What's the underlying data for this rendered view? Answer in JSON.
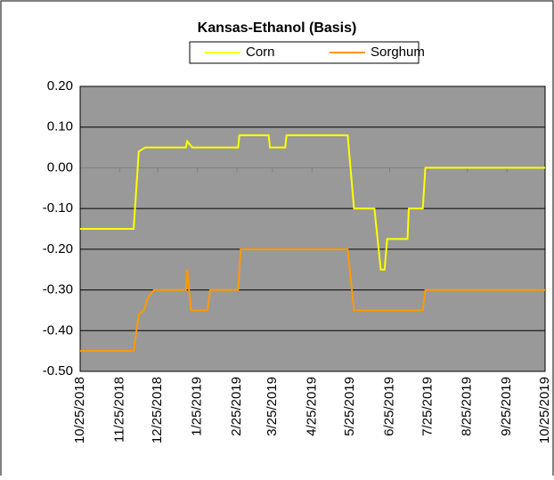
{
  "chart_data": {
    "type": "line",
    "title": "Kansas-Ethanol (Basis)",
    "series": [
      {
        "name": "Corn",
        "color": "#ffff00",
        "x": [
          "10/25/2018",
          "12/6/2018",
          "12/10/2018",
          "12/15/2018",
          "1/16/2019",
          "1/17/2019",
          "1/21/2019",
          "2/26/2019",
          "2/27/2019",
          "3/22/2019",
          "3/23/2019",
          "4/4/2019",
          "4/5/2019",
          "5/23/2019",
          "5/28/2019",
          "6/13/2019",
          "6/18/2019",
          "6/21/2019",
          "6/23/2019",
          "7/9/2019",
          "7/10/2019",
          "7/21/2019",
          "7/23/2019",
          "10/25/2019"
        ],
        "values": [
          -0.15,
          -0.15,
          0.04,
          0.05,
          0.05,
          0.065,
          0.05,
          0.05,
          0.08,
          0.08,
          0.05,
          0.05,
          0.08,
          0.08,
          -0.1,
          -0.1,
          -0.25,
          -0.25,
          -0.175,
          -0.175,
          -0.1,
          -0.1,
          0,
          0
        ]
      },
      {
        "name": "Sorghum",
        "color": "#ff9900",
        "x": [
          "10/25/2018",
          "12/6/2018",
          "12/10/2018",
          "12/14/2018",
          "12/17/2018",
          "12/22/2018",
          "1/16/2019",
          "1/17/2019",
          "1/20/2019",
          "2/2/2019",
          "2/4/2019",
          "2/26/2019",
          "2/28/2019",
          "5/23/2019",
          "5/28/2019",
          "7/21/2019",
          "7/23/2019",
          "10/25/2019"
        ],
        "values": [
          -0.45,
          -0.45,
          -0.36,
          -0.35,
          -0.32,
          -0.3,
          -0.3,
          -0.25,
          -0.35,
          -0.35,
          -0.3,
          -0.3,
          -0.2,
          -0.2,
          -0.35,
          -0.35,
          -0.3,
          -0.3
        ]
      }
    ],
    "xlim": [
      "10/25/2018",
      "10/25/2019"
    ],
    "xticks": [
      "10/25/2018",
      "11/25/2018",
      "12/25/2018",
      "1/25/2019",
      "2/25/2019",
      "3/25/2019",
      "4/25/2019",
      "5/25/2019",
      "6/25/2019",
      "7/25/2019",
      "8/25/2019",
      "9/25/2019",
      "10/25/2019"
    ],
    "ylim": [
      -0.5,
      0.2
    ],
    "yticks": [
      {
        "value": -0.5,
        "label": "-0.50"
      },
      {
        "value": -0.4,
        "label": "-0.40"
      },
      {
        "value": -0.3,
        "label": "-0.30"
      },
      {
        "value": -0.2,
        "label": "-0.20"
      },
      {
        "value": -0.1,
        "label": "-0.10"
      },
      {
        "value": 0,
        "label": "0.00"
      },
      {
        "value": 0.1,
        "label": "0.10"
      },
      {
        "value": 0.2,
        "label": "0.20"
      }
    ],
    "grid": true
  }
}
